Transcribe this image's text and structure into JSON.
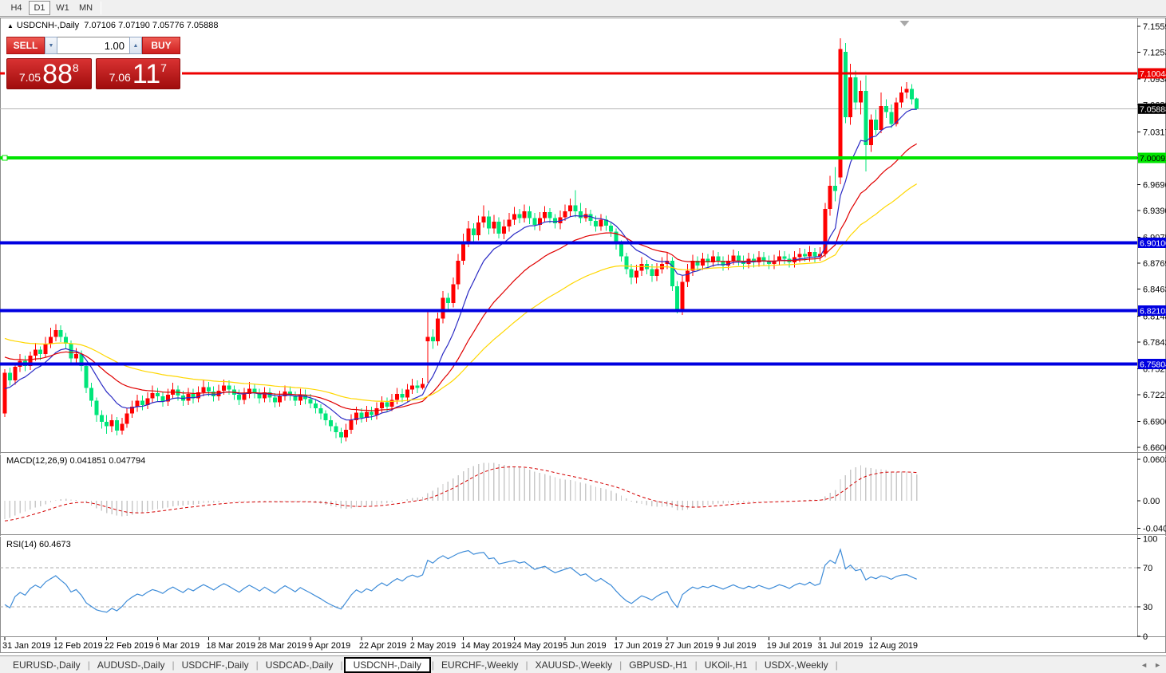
{
  "toolbar": {
    "buttons": [
      {
        "label": "H4",
        "active": false
      },
      {
        "label": "D1",
        "active": true
      },
      {
        "label": "W1",
        "active": false
      },
      {
        "label": "MN",
        "active": false
      }
    ]
  },
  "title": {
    "collapse_glyph": "▲",
    "symbol": "USDCNH-,Daily",
    "ohlc": "7.07106 7.07190 7.05776 7.05888"
  },
  "trade_panel": {
    "sell_label": "SELL",
    "buy_label": "BUY",
    "volume": "1.00",
    "spinner_down_glyph": "▼",
    "spinner_up_glyph": "▲",
    "sell_price": {
      "prefix": "7.05",
      "big": "88",
      "sup": "8"
    },
    "buy_price": {
      "prefix": "7.06",
      "big": "11",
      "sup": "7"
    }
  },
  "chart_data": {
    "type": "candlestick",
    "symbol": "USDCNH",
    "period": "Daily",
    "price_axis": {
      "ticks": [
        "7.15590",
        "7.12530",
        "7.09380",
        "7.06320",
        "7.03170",
        "7.00110",
        "6.96960",
        "6.93900",
        "6.90750",
        "6.87690",
        "6.84630",
        "6.81480",
        "6.78420",
        "6.75270",
        "6.72210",
        "6.69060",
        "6.66000"
      ]
    },
    "x_ticks": [
      {
        "bar": 0,
        "label": "31 Jan 2019"
      },
      {
        "bar": 10,
        "label": "12 Feb 2019"
      },
      {
        "bar": 20,
        "label": "22 Feb 2019"
      },
      {
        "bar": 30,
        "label": "6 Mar 2019"
      },
      {
        "bar": 40,
        "label": "18 Mar 2019"
      },
      {
        "bar": 50,
        "label": "28 Mar 2019"
      },
      {
        "bar": 60,
        "label": "9 Apr 2019"
      },
      {
        "bar": 70,
        "label": "22 Apr 2019"
      },
      {
        "bar": 80,
        "label": "2 May 2019"
      },
      {
        "bar": 90,
        "label": "14 May 2019"
      },
      {
        "bar": 100,
        "label": "24 May 2019"
      },
      {
        "bar": 110,
        "label": "5 Jun 2019"
      },
      {
        "bar": 120,
        "label": "17 Jun 2019"
      },
      {
        "bar": 130,
        "label": "27 Jun 2019"
      },
      {
        "bar": 140,
        "label": "9 Jul 2019"
      },
      {
        "bar": 150,
        "label": "19 Jul 2019"
      },
      {
        "bar": 160,
        "label": "31 Jul 2019"
      },
      {
        "bar": 170,
        "label": "12 Aug 2019"
      }
    ],
    "candles": [
      [
        6.7,
        6.752,
        6.696,
        6.748
      ],
      [
        6.748,
        6.754,
        6.733,
        6.739
      ],
      [
        6.739,
        6.759,
        6.734,
        6.755
      ],
      [
        6.755,
        6.77,
        6.749,
        6.762
      ],
      [
        6.762,
        6.768,
        6.75,
        6.756
      ],
      [
        6.756,
        6.773,
        6.751,
        6.768
      ],
      [
        6.768,
        6.783,
        6.762,
        6.775
      ],
      [
        6.775,
        6.779,
        6.763,
        6.77
      ],
      [
        6.77,
        6.79,
        6.766,
        6.782
      ],
      [
        6.782,
        6.801,
        6.777,
        6.79
      ],
      [
        6.79,
        6.805,
        6.785,
        6.798
      ],
      [
        6.798,
        6.804,
        6.784,
        6.79
      ],
      [
        6.79,
        6.795,
        6.776,
        6.782
      ],
      [
        6.782,
        6.786,
        6.759,
        6.765
      ],
      [
        6.765,
        6.777,
        6.758,
        6.77
      ],
      [
        6.77,
        6.774,
        6.75,
        6.756
      ],
      [
        6.756,
        6.76,
        6.724,
        6.73
      ],
      [
        6.73,
        6.736,
        6.708,
        6.715
      ],
      [
        6.715,
        6.719,
        6.69,
        6.698
      ],
      [
        6.698,
        6.704,
        6.682,
        6.69
      ],
      [
        6.69,
        6.698,
        6.676,
        6.685
      ],
      [
        6.685,
        6.699,
        6.678,
        6.692
      ],
      [
        6.692,
        6.696,
        6.674,
        6.68
      ],
      [
        6.68,
        6.695,
        6.675,
        6.688
      ],
      [
        6.688,
        6.706,
        6.683,
        6.7
      ],
      [
        6.7,
        6.715,
        6.695,
        6.708
      ],
      [
        6.708,
        6.722,
        6.702,
        6.715
      ],
      [
        6.715,
        6.721,
        6.704,
        6.71
      ],
      [
        6.71,
        6.725,
        6.705,
        6.718
      ],
      [
        6.718,
        6.733,
        6.713,
        6.724
      ],
      [
        6.724,
        6.73,
        6.714,
        6.72
      ],
      [
        6.72,
        6.726,
        6.708,
        6.714
      ],
      [
        6.714,
        6.729,
        6.709,
        6.722
      ],
      [
        6.722,
        6.736,
        6.717,
        6.728
      ],
      [
        6.728,
        6.733,
        6.715,
        6.721
      ],
      [
        6.721,
        6.727,
        6.709,
        6.715
      ],
      [
        6.715,
        6.73,
        6.71,
        6.723
      ],
      [
        6.723,
        6.729,
        6.712,
        6.718
      ],
      [
        6.718,
        6.732,
        6.713,
        6.725
      ],
      [
        6.725,
        6.739,
        6.72,
        6.731
      ],
      [
        6.731,
        6.737,
        6.72,
        6.726
      ],
      [
        6.726,
        6.732,
        6.714,
        6.72
      ],
      [
        6.72,
        6.734,
        6.715,
        6.727
      ],
      [
        6.727,
        6.74,
        6.722,
        6.733
      ],
      [
        6.733,
        6.739,
        6.722,
        6.728
      ],
      [
        6.728,
        6.733,
        6.716,
        6.722
      ],
      [
        6.722,
        6.728,
        6.71,
        6.716
      ],
      [
        6.716,
        6.73,
        6.711,
        6.723
      ],
      [
        6.723,
        6.737,
        6.718,
        6.729
      ],
      [
        6.729,
        6.735,
        6.718,
        6.724
      ],
      [
        6.724,
        6.729,
        6.712,
        6.718
      ],
      [
        6.718,
        6.731,
        6.713,
        6.725
      ],
      [
        6.725,
        6.73,
        6.713,
        6.719
      ],
      [
        6.719,
        6.724,
        6.707,
        6.713
      ],
      [
        6.713,
        6.727,
        6.708,
        6.72
      ],
      [
        6.72,
        6.733,
        6.715,
        6.726
      ],
      [
        6.726,
        6.732,
        6.715,
        6.721
      ],
      [
        6.721,
        6.726,
        6.709,
        6.715
      ],
      [
        6.715,
        6.729,
        6.71,
        6.722
      ],
      [
        6.722,
        6.728,
        6.711,
        6.717
      ],
      [
        6.717,
        6.723,
        6.706,
        6.712
      ],
      [
        6.712,
        6.717,
        6.7,
        6.706
      ],
      [
        6.706,
        6.711,
        6.693,
        6.7
      ],
      [
        6.7,
        6.704,
        6.686,
        6.692
      ],
      [
        6.692,
        6.697,
        6.679,
        6.685
      ],
      [
        6.685,
        6.689,
        6.671,
        6.678
      ],
      [
        6.678,
        6.683,
        6.665,
        6.672
      ],
      [
        6.672,
        6.688,
        6.667,
        6.681
      ],
      [
        6.681,
        6.699,
        6.676,
        6.692
      ],
      [
        6.692,
        6.708,
        6.687,
        6.701
      ],
      [
        6.701,
        6.706,
        6.689,
        6.695
      ],
      [
        6.695,
        6.709,
        6.69,
        6.702
      ],
      [
        6.702,
        6.708,
        6.692,
        6.698
      ],
      [
        6.698,
        6.713,
        6.693,
        6.706
      ],
      [
        6.706,
        6.72,
        6.701,
        6.713
      ],
      [
        6.713,
        6.719,
        6.702,
        6.708
      ],
      [
        6.708,
        6.723,
        6.703,
        6.716
      ],
      [
        6.716,
        6.73,
        6.711,
        6.723
      ],
      [
        6.723,
        6.729,
        6.713,
        6.719
      ],
      [
        6.719,
        6.735,
        6.714,
        6.728
      ],
      [
        6.728,
        6.741,
        6.723,
        6.733
      ],
      [
        6.733,
        6.739,
        6.724,
        6.73
      ],
      [
        6.73,
        6.742,
        6.728,
        6.735
      ],
      [
        6.785,
        6.822,
        6.736,
        6.79
      ],
      [
        6.79,
        6.799,
        6.776,
        6.785
      ],
      [
        6.785,
        6.819,
        6.78,
        6.812
      ],
      [
        6.812,
        6.844,
        6.806,
        6.836
      ],
      [
        6.836,
        6.842,
        6.823,
        6.83
      ],
      [
        6.83,
        6.86,
        6.825,
        6.852
      ],
      [
        6.852,
        6.888,
        6.846,
        6.88
      ],
      [
        6.88,
        6.912,
        6.875,
        6.902
      ],
      [
        6.902,
        6.927,
        6.896,
        6.918
      ],
      [
        6.918,
        6.924,
        6.903,
        6.91
      ],
      [
        6.91,
        6.933,
        6.904,
        6.925
      ],
      [
        6.925,
        6.945,
        6.919,
        6.932
      ],
      [
        6.932,
        6.939,
        6.911,
        6.918
      ],
      [
        6.918,
        6.934,
        6.912,
        6.926
      ],
      [
        6.926,
        6.931,
        6.906,
        6.912
      ],
      [
        6.912,
        6.928,
        6.905,
        6.92
      ],
      [
        6.92,
        6.936,
        6.914,
        6.928
      ],
      [
        6.928,
        6.943,
        6.922,
        6.935
      ],
      [
        6.935,
        6.941,
        6.924,
        6.93
      ],
      [
        6.93,
        6.946,
        6.925,
        6.938
      ],
      [
        6.938,
        6.944,
        6.923,
        6.93
      ],
      [
        6.93,
        6.936,
        6.916,
        6.922
      ],
      [
        6.922,
        6.937,
        6.915,
        6.93
      ],
      [
        6.93,
        6.944,
        6.926,
        6.937
      ],
      [
        6.937,
        6.942,
        6.924,
        6.93
      ],
      [
        6.93,
        6.935,
        6.918,
        6.924
      ],
      [
        6.924,
        6.939,
        6.917,
        6.931
      ],
      [
        6.931,
        6.946,
        6.927,
        6.938
      ],
      [
        6.938,
        6.953,
        6.932,
        6.945
      ],
      [
        6.945,
        6.963,
        6.931,
        6.938
      ],
      [
        6.938,
        6.948,
        6.924,
        6.93
      ],
      [
        6.93,
        6.942,
        6.926,
        6.935
      ],
      [
        6.935,
        6.94,
        6.921,
        6.927
      ],
      [
        6.927,
        6.933,
        6.914,
        6.92
      ],
      [
        6.92,
        6.935,
        6.915,
        6.928
      ],
      [
        6.928,
        6.933,
        6.915,
        6.921
      ],
      [
        6.921,
        6.926,
        6.908,
        6.914
      ],
      [
        6.914,
        6.918,
        6.893,
        6.9
      ],
      [
        6.9,
        6.904,
        6.879,
        6.885
      ],
      [
        6.885,
        6.889,
        6.864,
        6.87
      ],
      [
        6.87,
        6.876,
        6.852,
        6.86
      ],
      [
        6.86,
        6.875,
        6.853,
        6.868
      ],
      [
        6.868,
        6.884,
        6.862,
        6.876
      ],
      [
        6.876,
        6.881,
        6.864,
        6.87
      ],
      [
        6.87,
        6.876,
        6.855,
        6.862
      ],
      [
        6.862,
        6.877,
        6.856,
        6.87
      ],
      [
        6.87,
        6.884,
        6.865,
        6.876
      ],
      [
        6.876,
        6.889,
        6.87,
        6.88
      ],
      [
        6.88,
        6.884,
        6.844,
        6.85
      ],
      [
        6.85,
        6.856,
        6.818,
        6.822
      ],
      [
        6.822,
        6.862,
        6.816,
        6.855
      ],
      [
        6.855,
        6.876,
        6.849,
        6.868
      ],
      [
        6.868,
        6.887,
        6.862,
        6.88
      ],
      [
        6.88,
        6.885,
        6.868,
        6.874
      ],
      [
        6.874,
        6.889,
        6.869,
        6.882
      ],
      [
        6.882,
        6.888,
        6.872,
        6.878
      ],
      [
        6.878,
        6.892,
        6.873,
        6.885
      ],
      [
        6.885,
        6.89,
        6.874,
        6.88
      ],
      [
        6.88,
        6.885,
        6.868,
        6.874
      ],
      [
        6.874,
        6.887,
        6.869,
        6.88
      ],
      [
        6.88,
        6.893,
        6.875,
        6.886
      ],
      [
        6.886,
        6.891,
        6.874,
        6.88
      ],
      [
        6.88,
        6.886,
        6.87,
        6.876
      ],
      [
        6.876,
        6.889,
        6.871,
        6.882
      ],
      [
        6.882,
        6.888,
        6.872,
        6.878
      ],
      [
        6.878,
        6.891,
        6.873,
        6.884
      ],
      [
        6.884,
        6.89,
        6.874,
        6.88
      ],
      [
        6.88,
        6.886,
        6.87,
        6.876
      ],
      [
        6.876,
        6.887,
        6.87,
        6.88
      ],
      [
        6.88,
        6.892,
        6.874,
        6.885
      ],
      [
        6.885,
        6.891,
        6.876,
        6.882
      ],
      [
        6.882,
        6.888,
        6.872,
        6.878
      ],
      [
        6.878,
        6.891,
        6.872,
        6.884
      ],
      [
        6.884,
        6.895,
        6.878,
        6.888
      ],
      [
        6.888,
        6.894,
        6.879,
        6.885
      ],
      [
        6.885,
        6.897,
        6.879,
        6.89
      ],
      [
        6.89,
        6.895,
        6.878,
        6.885
      ],
      [
        6.885,
        6.896,
        6.88,
        6.888
      ],
      [
        6.888,
        6.948,
        6.884,
        6.941
      ],
      [
        6.941,
        6.98,
        6.933,
        6.968
      ],
      [
        6.968,
        6.99,
        6.95,
        6.962
      ],
      [
        6.978,
        7.142,
        6.97,
        7.129
      ],
      [
        7.126,
        7.136,
        7.042,
        7.049
      ],
      [
        7.049,
        7.112,
        7.04,
        7.096
      ],
      [
        7.096,
        7.104,
        7.058,
        7.066
      ],
      [
        7.066,
        7.092,
        7.052,
        7.08
      ],
      [
        7.08,
        7.098,
        6.985,
        7.016
      ],
      [
        7.016,
        7.052,
        7.008,
        7.046
      ],
      [
        7.046,
        7.058,
        7.028,
        7.034
      ],
      [
        7.034,
        7.078,
        7.03,
        7.062
      ],
      [
        7.062,
        7.07,
        7.048,
        7.055
      ],
      [
        7.055,
        7.064,
        7.036,
        7.041
      ],
      [
        7.041,
        7.072,
        7.038,
        7.066
      ],
      [
        7.066,
        7.085,
        7.06,
        7.078
      ],
      [
        7.078,
        7.09,
        7.071,
        7.082
      ],
      [
        7.082,
        7.088,
        7.064,
        7.07
      ],
      [
        7.0711,
        7.0719,
        7.0578,
        7.0589
      ]
    ],
    "hlines": [
      {
        "value": 7.10044,
        "label": "7.10044",
        "color": "#EE0000",
        "label_text": "#FFFFFF",
        "width": 3,
        "handle": false
      },
      {
        "value": 7.00092,
        "label": "7.00092",
        "color": "#00E400",
        "label_text": "#000000",
        "width": 4,
        "handle": true
      },
      {
        "value": 6.901,
        "label": "6.90100",
        "color": "#0000E0",
        "label_text": "#FFFFFF",
        "width": 4,
        "handle": false
      },
      {
        "value": 6.82103,
        "label": "6.82103",
        "color": "#0000E0",
        "label_text": "#FFFFFF",
        "width": 4,
        "handle": false
      },
      {
        "value": 6.75804,
        "label": "6.75804",
        "color": "#0000E0",
        "label_text": "#FFFFFF",
        "width": 4,
        "handle": false
      }
    ],
    "current_price": {
      "value": 7.05888,
      "label": "7.05888",
      "line_color": "#B4B4B4",
      "label_bg": "#000000",
      "label_text": "#FFFFFF"
    },
    "moving_averages": [
      {
        "name": "fast",
        "period": 10,
        "color": "#2A2AC4",
        "seed": 6.725
      },
      {
        "name": "medium",
        "period": 25,
        "color": "#E00000",
        "seed": 6.768
      },
      {
        "name": "slow",
        "period": 50,
        "color": "#FFD700",
        "seed": 6.79
      }
    ],
    "colors": {
      "bull": "#FF0000",
      "bear": "#00E57A",
      "background": "#FFFFFF",
      "border": "#8C8C8C",
      "text": "#000000"
    },
    "macd": {
      "label": "MACD(12,26,9)",
      "values": "0.041851 0.047794",
      "fast": 12,
      "slow": 26,
      "signal": 9,
      "axis": [
        "0.060343",
        "0.00",
        "-0.040136"
      ],
      "histogram_color": "#C8C8C8",
      "signal_color": "#D40000"
    },
    "rsi": {
      "label": "RSI(14)",
      "value": "60.4673",
      "period": 14,
      "axis": [
        100,
        70,
        30,
        0
      ],
      "levels": [
        70,
        30
      ],
      "line_color": "#3E8CD8",
      "level_color": "#ADADAD"
    }
  },
  "tabs": {
    "items": [
      {
        "label": "EURUSD-,Daily",
        "active": false
      },
      {
        "label": "AUDUSD-,Daily",
        "active": false
      },
      {
        "label": "USDCHF-,Daily",
        "active": false
      },
      {
        "label": "USDCAD-,Daily",
        "active": false
      },
      {
        "label": "USDCNH-,Daily",
        "active": true
      },
      {
        "label": "EURCHF-,Weekly",
        "active": false
      },
      {
        "label": "XAUUSD-,Weekly",
        "active": false
      },
      {
        "label": "GBPUSD-,H1",
        "active": false
      },
      {
        "label": "UKOil-,H1",
        "active": false
      },
      {
        "label": "USDX-,Weekly",
        "active": false
      }
    ],
    "scroll_left_glyph": "◄",
    "scroll_right_glyph": "►"
  }
}
